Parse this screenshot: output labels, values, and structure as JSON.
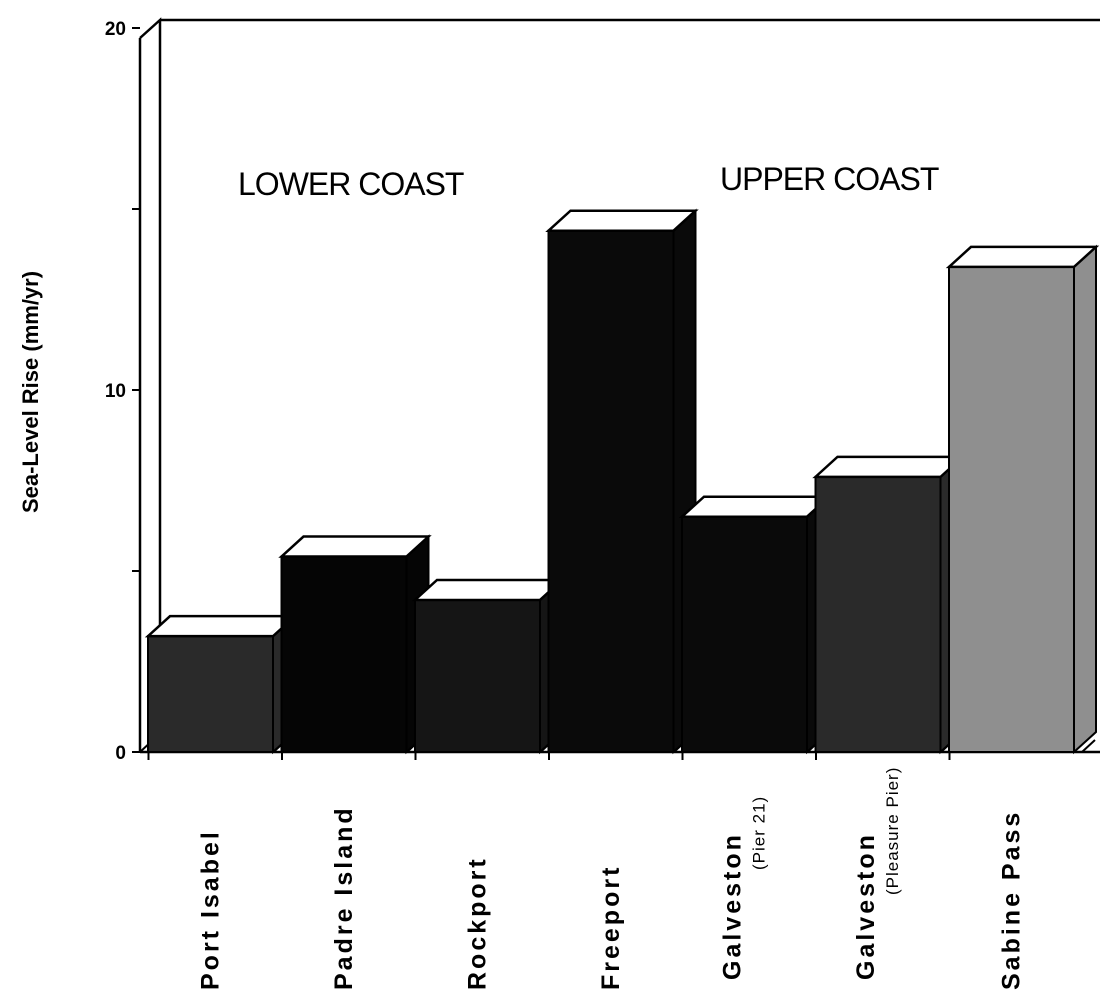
{
  "chart_data": {
    "type": "bar",
    "ylabel": "Sea-Level Rise (mm/yr)",
    "ylim": [
      0,
      20
    ],
    "yticks": [
      "0",
      "10",
      "20"
    ],
    "region_labels": [
      "LOWER COAST",
      "UPPER COAST"
    ],
    "categories": [
      {
        "name": "Port   Isabel",
        "sub": ""
      },
      {
        "name": "Padre   Island",
        "sub": ""
      },
      {
        "name": "Rockport",
        "sub": ""
      },
      {
        "name": "Freeport",
        "sub": ""
      },
      {
        "name": "Galveston",
        "sub": "(Pier  21)"
      },
      {
        "name": "Galveston",
        "sub": "(Pleasure  Pier)"
      },
      {
        "name": "Sabine      Pass",
        "sub": ""
      }
    ],
    "values": [
      3.2,
      5.4,
      4.2,
      14.4,
      6.5,
      7.6,
      13.4
    ],
    "bar_colors": [
      "#2a2a2a",
      "#050505",
      "#151515",
      "#0a0a0a",
      "#0a0a0a",
      "#2a2a2a",
      "#8f8f8f"
    ],
    "grid": false,
    "legend": "none"
  }
}
